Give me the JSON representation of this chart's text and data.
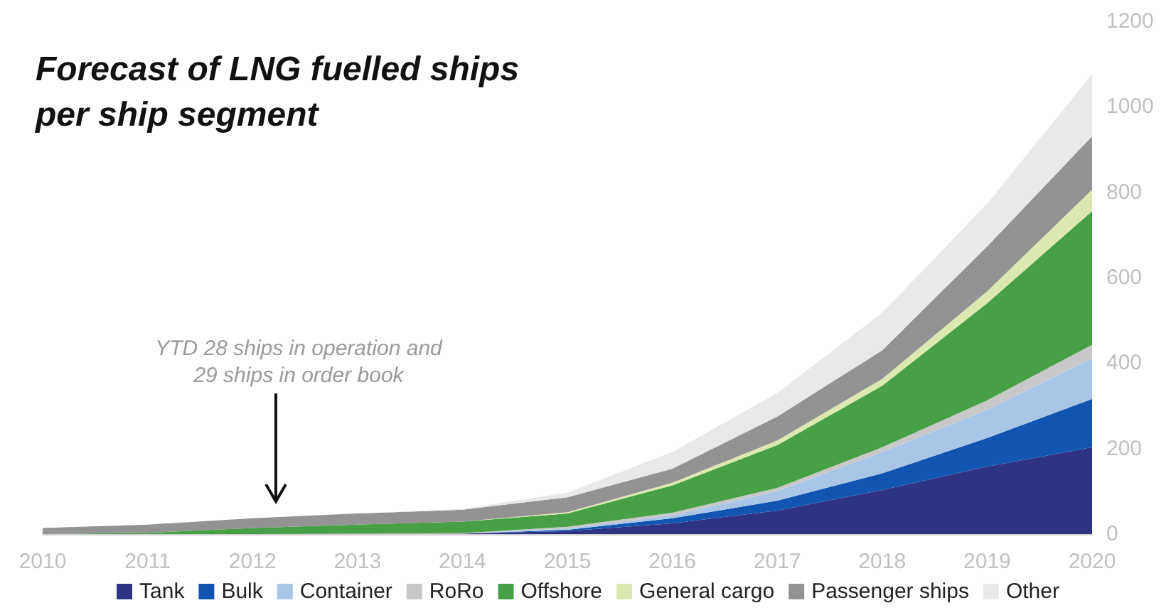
{
  "chart_data": {
    "type": "area",
    "title": "Forecast of LNG fuelled ships\nper ship segment",
    "categories": [
      "2010",
      "2011",
      "2012",
      "2013",
      "2014",
      "2015",
      "2016",
      "2017",
      "2018",
      "2019",
      "2020"
    ],
    "stacked": true,
    "series": [
      {
        "name": "Tank",
        "color": "#2e3383",
        "values": [
          0,
          0,
          0,
          0,
          1,
          7,
          25,
          55,
          103,
          158,
          203
        ]
      },
      {
        "name": "Bulk",
        "color": "#1155b0",
        "values": [
          0,
          0,
          0,
          0,
          0,
          3,
          12,
          23,
          39,
          67,
          113
        ]
      },
      {
        "name": "Container",
        "color": "#a9c6e8",
        "values": [
          0,
          0,
          0,
          0,
          0,
          3,
          7,
          22,
          50,
          66,
          95
        ]
      },
      {
        "name": "RoRo",
        "color": "#c8c8c8",
        "values": [
          0,
          0,
          0,
          1,
          1,
          4,
          6,
          8,
          11,
          22,
          32
        ]
      },
      {
        "name": "Offshore",
        "color": "#47a046",
        "values": [
          0,
          3,
          14,
          21,
          27,
          31,
          64,
          100,
          144,
          227,
          313
        ]
      },
      {
        "name": "General cargo",
        "color": "#dbe9b0",
        "values": [
          0,
          0,
          0,
          0,
          0,
          3,
          6,
          11,
          16,
          28,
          50
        ]
      },
      {
        "name": "Passenger ships",
        "color": "#939393",
        "values": [
          14,
          19,
          23,
          26,
          28,
          35,
          33,
          56,
          67,
          105,
          125
        ]
      },
      {
        "name": "Other",
        "color": "#e9e9e9",
        "values": [
          0,
          0,
          0,
          0,
          2,
          11,
          39,
          55,
          88,
          100,
          146
        ]
      }
    ],
    "ylim": [
      0,
      1200
    ],
    "yticks": [
      0,
      200,
      400,
      600,
      800,
      1000,
      1200
    ],
    "grid": false,
    "legend": "bottom",
    "annotations": [
      "YTD 28 ships in operation and\n29 ships in order book"
    ]
  }
}
